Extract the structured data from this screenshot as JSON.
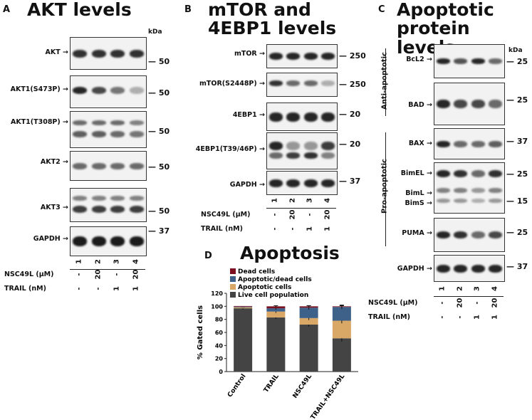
{
  "panel_a": {
    "letter": "A",
    "title": "AKT levels",
    "kda_unit": "kDa",
    "blots": [
      {
        "label": "AKT",
        "kda": "50"
      },
      {
        "label": "AKT1(S473P)",
        "kda": "50"
      },
      {
        "label": "AKT1(T308P)",
        "kda": "50"
      },
      {
        "label": "AKT2",
        "kda": "50"
      },
      {
        "label": "AKT3",
        "kda": "50"
      },
      {
        "label": "GAPDH",
        "kda": "37"
      }
    ],
    "lanes": [
      "1",
      "2",
      "3",
      "4"
    ],
    "nsc_label": "NSC49L (μM)",
    "trail_label": "TRAIL (nM)",
    "nsc_values": [
      "-",
      "20",
      "-",
      "20"
    ],
    "trail_values": [
      "-",
      "-",
      "1",
      "1"
    ]
  },
  "panel_b": {
    "letter": "B",
    "title_line1": "mTOR and",
    "title_line2": "4EBP1 levels",
    "blots": [
      {
        "label": "mTOR",
        "kda": "250"
      },
      {
        "label": "mTOR(S2448P)",
        "kda": "250"
      },
      {
        "label": "4EBP1",
        "kda": "20"
      },
      {
        "label": "4EBP1(T39/46P)",
        "kda": "20"
      },
      {
        "label": "GAPDH",
        "kda": "37"
      }
    ],
    "lanes": [
      "1",
      "2",
      "3",
      "4"
    ],
    "nsc_label": "NSC49L (μM)",
    "trail_label": "TRAIL (nM)",
    "nsc_values": [
      "-",
      "20",
      "-",
      "20"
    ],
    "trail_values": [
      "-",
      "-",
      "1",
      "1"
    ]
  },
  "panel_c": {
    "letter": "C",
    "title_line1": "Apoptotic",
    "title_line2": "protein levels",
    "kda_unit": "kDa",
    "group_anti": "Anti-apoptotic",
    "group_pro": "Pro-apoptotic",
    "blots": [
      {
        "label": "BcL2",
        "kda": "25"
      },
      {
        "label": "BAD",
        "kda": "25"
      },
      {
        "label": "BAX",
        "kda": "37"
      },
      {
        "label": "BimEL",
        "kda": "25"
      },
      {
        "label": "BimL",
        "kda": ""
      },
      {
        "label": "BimS",
        "kda": "15"
      },
      {
        "label": "PUMA",
        "kda": "25"
      },
      {
        "label": "GAPDH",
        "kda": "37"
      }
    ],
    "lanes": [
      "1",
      "2",
      "3",
      "4"
    ],
    "nsc_label": "NSC49L (μM)",
    "trail_label": "TRAIL (nM)",
    "nsc_values": [
      "-",
      "20",
      "-",
      "20"
    ],
    "trail_values": [
      "-",
      "-",
      "1",
      "1"
    ]
  },
  "panel_d": {
    "letter": "D",
    "title": "Apoptosis",
    "colors": {
      "dead": "#7a1020",
      "apo_dead": "#3d6189",
      "apoptotic": "#d9a766",
      "live": "#444444"
    },
    "chart_data": {
      "type": "bar",
      "stacked": true,
      "categories": [
        "Control",
        "TRAIL",
        "NSC49L",
        "TRAIL+NSC49L"
      ],
      "ylabel": "% Gated cells",
      "ylim": [
        0,
        120
      ],
      "yticks": [
        "0",
        "20",
        "40",
        "60",
        "80",
        "100",
        "120"
      ],
      "legend_position": "top",
      "series": [
        {
          "name": "Live cell population",
          "values": [
            97,
            83,
            72,
            51
          ],
          "errors": [
            1.5,
            2,
            3,
            5
          ]
        },
        {
          "name": "Apoptotic cells",
          "values": [
            1.5,
            9,
            10,
            27
          ],
          "errors": [
            0,
            2,
            3,
            4
          ]
        },
        {
          "name": "Apoptotic/dead cells",
          "values": [
            1,
            5,
            16,
            21
          ],
          "errors": [
            0,
            2,
            3,
            3
          ]
        },
        {
          "name": "Dead cells",
          "values": [
            1,
            3,
            2,
            1
          ],
          "errors": [
            0,
            1,
            1,
            1
          ]
        }
      ]
    }
  }
}
